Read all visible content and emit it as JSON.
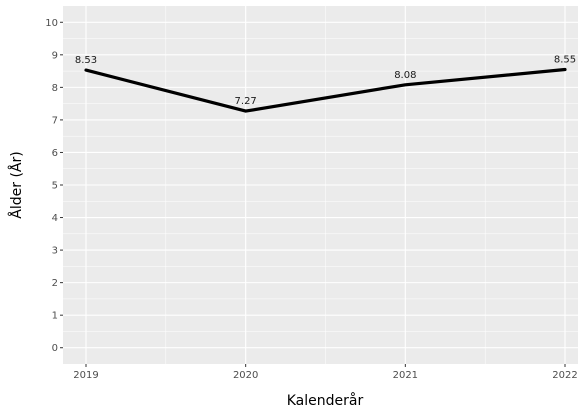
{
  "chart_data": {
    "type": "line",
    "title": "",
    "xlabel": "Kalenderår",
    "ylabel": "Ålder (År)",
    "categories": [
      "2019",
      "2020",
      "2021",
      "2022"
    ],
    "series": [
      {
        "values": [
          8.53,
          7.27,
          8.08,
          8.55
        ],
        "labels": [
          "8.53",
          "7.27",
          "8.08",
          "8.55"
        ]
      }
    ],
    "ylim": [
      -0.5,
      10.5
    ],
    "yticks": [
      0,
      1,
      2,
      3,
      4,
      5,
      6,
      7,
      8,
      9,
      10
    ],
    "grid": true,
    "legend": "none",
    "colors": {
      "panel": "#ebebeb",
      "grid": "#ffffff",
      "line": "#000000"
    }
  }
}
